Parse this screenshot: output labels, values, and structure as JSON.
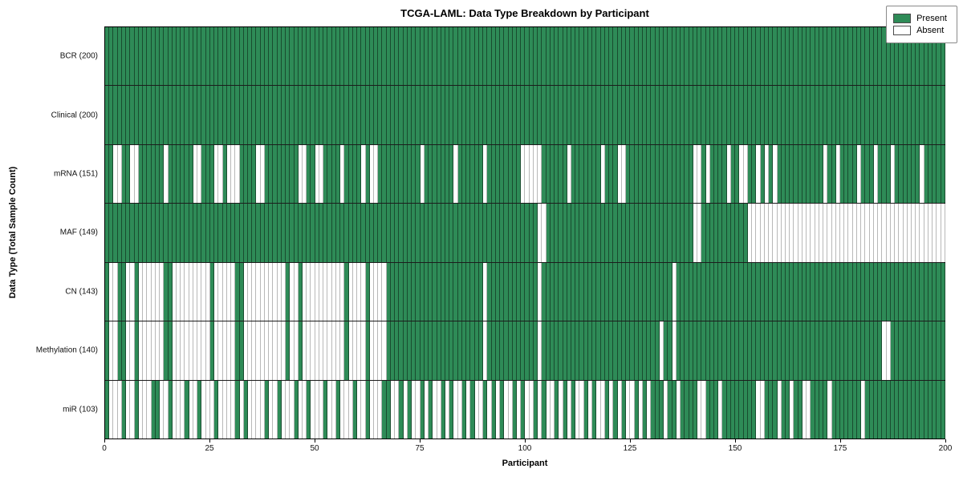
{
  "title": "TCGA-LAML: Data Type Breakdown by Participant",
  "xlabel": "Participant",
  "ylabel": "Data Type (Total Sample Count)",
  "legend": {
    "present_label": "Present",
    "absent_label": "Absent"
  },
  "colors": {
    "present": "#2e8b57",
    "absent": "#ffffff"
  },
  "chart_data": {
    "type": "heatmap",
    "title": "TCGA-LAML: Data Type Breakdown by Participant",
    "xlabel": "Participant",
    "ylabel": "Data Type (Total Sample Count)",
    "legend_entries": [
      "Present",
      "Absent"
    ],
    "legend_position": "upper right",
    "n_participants": 200,
    "xlim": [
      0,
      200
    ],
    "x_ticks": [
      0,
      25,
      50,
      75,
      100,
      125,
      150,
      175,
      200
    ],
    "rows": [
      {
        "label": "BCR (200)",
        "total_present": 200,
        "absent": []
      },
      {
        "label": "Clinical (200)",
        "total_present": 200,
        "absent": []
      },
      {
        "label": "mRNA (151)",
        "total_present": 151,
        "absent": [
          2,
          3,
          6,
          7,
          14,
          21,
          22,
          26,
          27,
          29,
          30,
          31,
          36,
          37,
          46,
          47,
          50,
          51,
          56,
          61,
          63,
          64,
          75,
          83,
          90,
          99,
          100,
          101,
          102,
          103,
          110,
          118,
          122,
          123,
          140,
          141,
          143,
          148,
          151,
          152,
          155,
          157,
          159,
          171,
          174,
          179,
          183,
          187,
          194
        ]
      },
      {
        "label": "MAF (149)",
        "total_present": 149,
        "absent": [
          103,
          104,
          140,
          141,
          153,
          154,
          155,
          156,
          157,
          158,
          159,
          160,
          161,
          162,
          163,
          164,
          165,
          166,
          167,
          168,
          169,
          170,
          171,
          172,
          173,
          174,
          175,
          176,
          177,
          178,
          179,
          180,
          181,
          182,
          183,
          184,
          185,
          186,
          187,
          188,
          189,
          190,
          191,
          192,
          193,
          194,
          195,
          196,
          197,
          198,
          199
        ]
      },
      {
        "label": "CN (143)",
        "total_present": 143,
        "absent": [
          1,
          2,
          5,
          6,
          8,
          9,
          10,
          11,
          12,
          13,
          16,
          17,
          18,
          19,
          20,
          21,
          22,
          23,
          24,
          26,
          27,
          28,
          29,
          30,
          33,
          34,
          35,
          36,
          37,
          38,
          39,
          40,
          41,
          42,
          44,
          45,
          47,
          48,
          49,
          50,
          51,
          52,
          53,
          54,
          55,
          56,
          58,
          59,
          60,
          61,
          63,
          64,
          65,
          66,
          90,
          103,
          135
        ]
      },
      {
        "label": "Methylation (140)",
        "total_present": 140,
        "absent": [
          1,
          2,
          5,
          6,
          8,
          9,
          10,
          11,
          12,
          13,
          16,
          17,
          18,
          19,
          20,
          21,
          22,
          23,
          24,
          26,
          27,
          28,
          29,
          30,
          33,
          34,
          35,
          36,
          37,
          38,
          39,
          40,
          41,
          42,
          44,
          45,
          47,
          48,
          49,
          50,
          51,
          52,
          53,
          54,
          55,
          56,
          58,
          59,
          60,
          61,
          63,
          64,
          65,
          66,
          90,
          103,
          132,
          135,
          185,
          186
        ]
      },
      {
        "label": "miR (103)",
        "total_present": 103,
        "absent": [
          1,
          2,
          3,
          5,
          6,
          8,
          9,
          10,
          13,
          14,
          16,
          17,
          18,
          20,
          21,
          23,
          24,
          25,
          27,
          28,
          29,
          30,
          32,
          34,
          35,
          36,
          37,
          39,
          40,
          42,
          43,
          44,
          46,
          47,
          49,
          50,
          51,
          53,
          54,
          56,
          57,
          58,
          60,
          61,
          63,
          64,
          65,
          68,
          69,
          71,
          73,
          74,
          76,
          78,
          79,
          81,
          83,
          84,
          86,
          88,
          89,
          91,
          93,
          95,
          96,
          98,
          100,
          101,
          103,
          105,
          106,
          108,
          110,
          112,
          113,
          115,
          117,
          118,
          120,
          122,
          124,
          125,
          127,
          129,
          133,
          136,
          141,
          142,
          146,
          155,
          156,
          160,
          163,
          166,
          167,
          172,
          180
        ]
      }
    ]
  }
}
